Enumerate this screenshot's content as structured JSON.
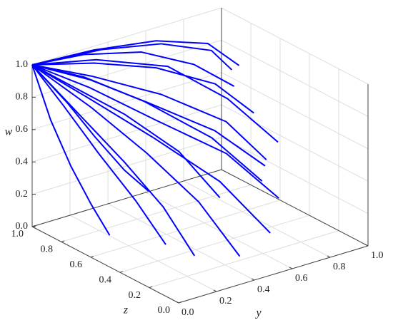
{
  "chart_data": {
    "type": "line3d",
    "color": "#0000ff",
    "grid": true,
    "xlabel": "y",
    "ylabel": "z",
    "zlabel": "w",
    "ylim": [
      0,
      1
    ],
    "zlim": [
      0,
      1
    ],
    "wlim": [
      0,
      1
    ],
    "yticks": [
      {
        "value": 0,
        "label": "0.0"
      },
      {
        "value": 0.2,
        "label": "0.2"
      },
      {
        "value": 0.4,
        "label": "0.4"
      },
      {
        "value": 0.6,
        "label": "0.6"
      },
      {
        "value": 0.8,
        "label": "0.8"
      },
      {
        "value": 1,
        "label": "1.0"
      }
    ],
    "zticks": [
      {
        "value": 0,
        "label": "0.0"
      },
      {
        "value": 0.2,
        "label": "0.2"
      },
      {
        "value": 0.4,
        "label": "0.4"
      },
      {
        "value": 0.6,
        "label": "0.6"
      },
      {
        "value": 0.8,
        "label": "0.8"
      },
      {
        "value": 1,
        "label": "1.0"
      }
    ],
    "wticks": [
      {
        "value": 0,
        "label": "0.0"
      },
      {
        "value": 0.2,
        "label": "0.2"
      },
      {
        "value": 0.4,
        "label": "0.4"
      },
      {
        "value": 0.6,
        "label": "0.6"
      },
      {
        "value": 0.8,
        "label": "0.8"
      },
      {
        "value": 1,
        "label": "1.0"
      }
    ],
    "series": [
      {
        "y": [
          0,
          0.3,
          0.6,
          0.85,
          1.0
        ],
        "z": [
          1,
          0.97,
          0.93,
          0.9,
          0.88
        ],
        "w": [
          1,
          1.0,
          0.97,
          0.88,
          0.7
        ]
      },
      {
        "y": [
          0,
          0.25,
          0.5,
          0.75,
          0.9
        ],
        "z": [
          1,
          0.9,
          0.8,
          0.72,
          0.65
        ],
        "w": [
          1,
          0.97,
          0.9,
          0.75,
          0.55
        ]
      },
      {
        "y": [
          0,
          0.2,
          0.45,
          0.7,
          0.85
        ],
        "z": [
          1,
          0.85,
          0.7,
          0.58,
          0.5
        ],
        "w": [
          1,
          0.93,
          0.8,
          0.6,
          0.35
        ]
      },
      {
        "y": [
          0,
          0.15,
          0.35,
          0.6,
          0.8
        ],
        "z": [
          1,
          0.8,
          0.6,
          0.45,
          0.35
        ],
        "w": [
          1,
          0.9,
          0.72,
          0.5,
          0.2
        ]
      },
      {
        "y": [
          0,
          0.1,
          0.25,
          0.45,
          0.6
        ],
        "z": [
          1,
          0.75,
          0.5,
          0.3,
          0.15
        ],
        "w": [
          1,
          0.88,
          0.7,
          0.45,
          0.15
        ]
      },
      {
        "y": [
          0,
          0.08,
          0.18,
          0.3,
          0.4
        ],
        "z": [
          1,
          0.7,
          0.45,
          0.25,
          0.1
        ],
        "w": [
          1,
          0.85,
          0.65,
          0.4,
          0.1
        ]
      },
      {
        "y": [
          0,
          0.05,
          0.1,
          0.15,
          0.2
        ],
        "z": [
          1,
          0.75,
          0.5,
          0.3,
          0.15
        ],
        "w": [
          1,
          0.8,
          0.6,
          0.4,
          0.15
        ]
      },
      {
        "y": [
          0,
          0.02,
          0.05,
          0.08,
          0.1
        ],
        "z": [
          1,
          0.9,
          0.8,
          0.7,
          0.6
        ],
        "w": [
          1,
          0.7,
          0.45,
          0.25,
          0.1
        ]
      },
      {
        "y": [
          0,
          0.3,
          0.6,
          0.8,
          0.95
        ],
        "z": [
          1,
          0.95,
          0.85,
          0.7,
          0.55
        ],
        "w": [
          1,
          0.95,
          0.85,
          0.65,
          0.4
        ]
      },
      {
        "y": [
          0,
          0.2,
          0.4,
          0.6,
          0.75
        ],
        "z": [
          1,
          0.9,
          0.75,
          0.55,
          0.4
        ],
        "w": [
          1,
          0.9,
          0.75,
          0.55,
          0.3
        ]
      },
      {
        "y": [
          0,
          0.1,
          0.22,
          0.35,
          0.45
        ],
        "z": [
          1,
          0.85,
          0.65,
          0.45,
          0.3
        ],
        "w": [
          1,
          0.9,
          0.78,
          0.6,
          0.35
        ]
      },
      {
        "y": [
          0,
          0.35,
          0.65,
          0.9,
          1.0
        ],
        "z": [
          1,
          0.98,
          0.96,
          0.94,
          0.93
        ],
        "w": [
          1,
          0.98,
          0.92,
          0.8,
          0.65
        ]
      },
      {
        "y": [
          0,
          0.05,
          0.12,
          0.2,
          0.28
        ],
        "z": [
          1,
          0.85,
          0.7,
          0.55,
          0.45
        ],
        "w": [
          1,
          0.8,
          0.55,
          0.3,
          0.05
        ]
      },
      {
        "y": [
          0,
          0.15,
          0.3,
          0.5,
          0.65
        ],
        "z": [
          1,
          0.8,
          0.6,
          0.4,
          0.25
        ],
        "w": [
          1,
          0.95,
          0.85,
          0.7,
          0.5
        ]
      },
      {
        "y": [
          0,
          0.03,
          0.06,
          0.1,
          0.15
        ],
        "z": [
          1,
          0.8,
          0.65,
          0.5,
          0.4
        ],
        "w": [
          1,
          0.85,
          0.7,
          0.55,
          0.45
        ]
      },
      {
        "y": [
          0,
          0.25,
          0.5,
          0.7,
          0.85
        ],
        "z": [
          1,
          0.97,
          0.9,
          0.8,
          0.72
        ],
        "w": [
          1,
          0.99,
          0.95,
          0.85,
          0.7
        ]
      }
    ]
  }
}
